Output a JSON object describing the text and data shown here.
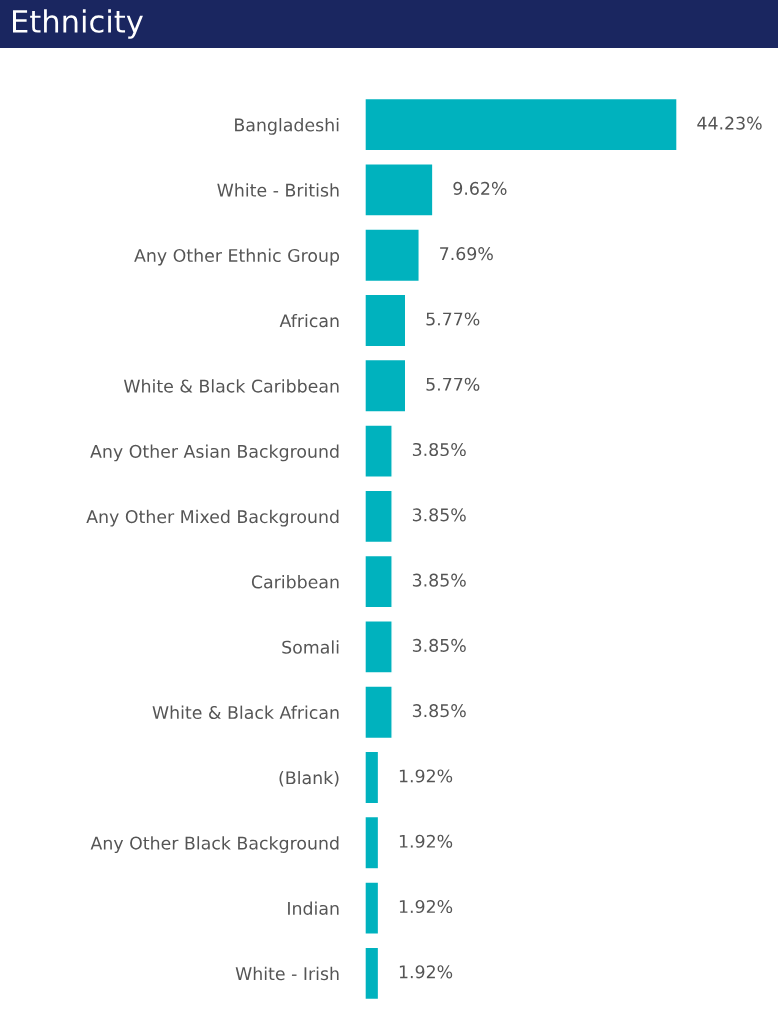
{
  "chart_data": {
    "type": "bar",
    "orientation": "horizontal",
    "title": "Ethnicity",
    "categories": [
      "Bangladeshi",
      "White - British",
      "Any Other Ethnic Group",
      "African",
      "White & Black Caribbean",
      "Any Other Asian Background",
      "Any Other Mixed Background",
      "Caribbean",
      "Somali",
      "White & Black African",
      "(Blank)",
      "Any Other Black Background",
      "Indian",
      "White - Irish"
    ],
    "values": [
      44.23,
      9.62,
      7.69,
      5.77,
      5.77,
      3.85,
      3.85,
      3.85,
      3.85,
      3.85,
      1.92,
      1.92,
      1.92,
      1.92
    ],
    "value_labels": [
      "44.23%",
      "9.62%",
      "7.69%",
      "5.77%",
      "5.77%",
      "3.85%",
      "3.85%",
      "3.85%",
      "3.85%",
      "3.85%",
      "1.92%",
      "1.92%",
      "1.92%",
      "1.92%"
    ],
    "color": "#00b2be",
    "grid": false,
    "legend": false
  }
}
